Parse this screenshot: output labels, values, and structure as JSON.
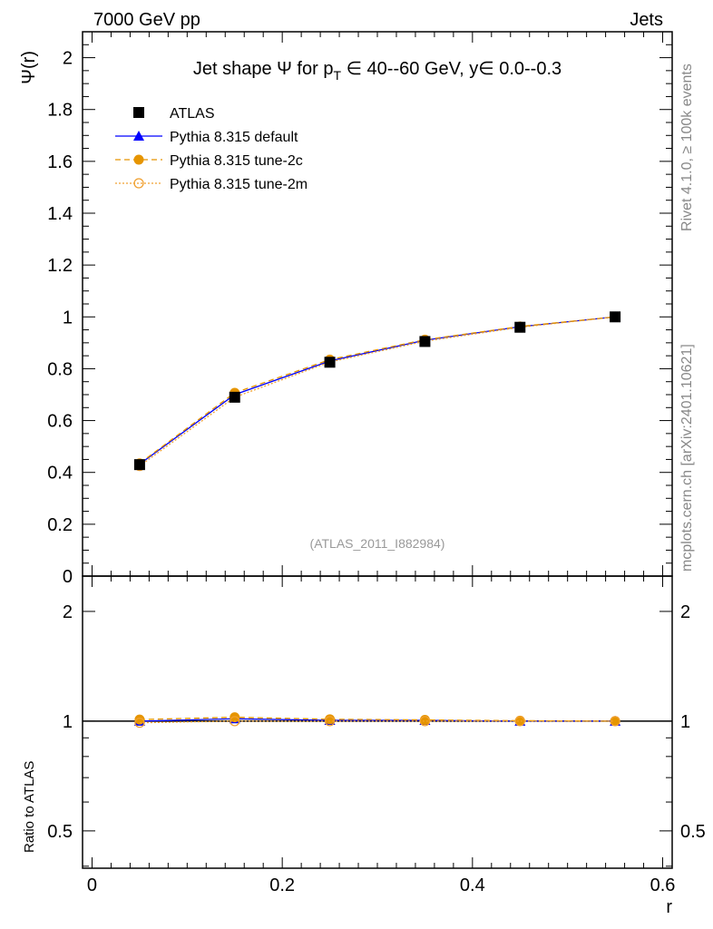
{
  "header": {
    "left": "7000 GeV pp",
    "right": "Jets"
  },
  "side_labels": {
    "rivet": "Rivet 4.1.0, ≥ 100k events",
    "mcplots": "mcplots.cern.ch [arXiv:2401.10621]"
  },
  "watermark": "(ATLAS_2011_I882984)",
  "chart_data": [
    {
      "type": "line",
      "title": "Jet shape Ψ for p_T ∈ 40--60 GeV, y∈ 0.0--0.3",
      "title_parts": {
        "a": "Jet shape Ψ for p",
        "sub": "T",
        "b": " ∈ 40--60 GeV, y∈ 0.0--0.3"
      },
      "xlabel": "r",
      "ylabel": "Ψ(r)",
      "xlim": [
        -0.01,
        0.61
      ],
      "ylim": [
        0,
        2.1
      ],
      "xticks": [
        "0",
        "0.2",
        "0.4",
        "0.6"
      ],
      "xtick_values": [
        0,
        0.2,
        0.4,
        0.6
      ],
      "yticks": [
        "0",
        "0.2",
        "0.4",
        "0.6",
        "0.8",
        "1",
        "1.2",
        "1.4",
        "1.6",
        "1.8",
        "2"
      ],
      "ytick_values": [
        0,
        0.2,
        0.4,
        0.6,
        0.8,
        1.0,
        1.2,
        1.4,
        1.6,
        1.8,
        2.0
      ],
      "legend_position": "top-left",
      "x": [
        0.05,
        0.15,
        0.25,
        0.35,
        0.45,
        0.55
      ],
      "series": [
        {
          "name": "ATLAS",
          "color": "#000000",
          "marker": "square",
          "values": [
            0.43,
            0.69,
            0.825,
            0.905,
            0.96,
            1.0
          ],
          "errors": [
            0.015,
            0.012,
            0.008,
            0.006,
            0.004,
            0.0
          ]
        },
        {
          "name": "Pythia 8.315 default",
          "color": "#0000ff",
          "marker": "triangle",
          "line": "solid",
          "values": [
            0.432,
            0.7,
            0.83,
            0.91,
            0.962,
            1.0
          ]
        },
        {
          "name": "Pythia 8.315 tune-2c",
          "color": "#e69500",
          "marker": "circle",
          "line": "dashed",
          "values": [
            0.435,
            0.707,
            0.835,
            0.912,
            0.963,
            1.0
          ]
        },
        {
          "name": "Pythia 8.315 tune-2m",
          "color": "#f0a030",
          "marker": "open-circle",
          "line": "dotted",
          "values": [
            0.425,
            0.69,
            0.826,
            0.906,
            0.96,
            1.0
          ]
        }
      ]
    },
    {
      "type": "line",
      "title": "",
      "xlabel": "r",
      "ylabel": "Ratio to ATLAS",
      "yscale": "log",
      "ylim": [
        0.395,
        2.5
      ],
      "yticks": [
        "0.5",
        "1",
        "2"
      ],
      "ytick_values": [
        0.5,
        1,
        2
      ],
      "x": [
        0.05,
        0.15,
        0.25,
        0.35,
        0.45,
        0.55
      ],
      "series": [
        {
          "name": "Pythia 8.315 default",
          "values": [
            1.0,
            1.015,
            1.005,
            1.005,
            1.0,
            1.0
          ]
        },
        {
          "name": "Pythia 8.315 tune-2c",
          "values": [
            1.01,
            1.025,
            1.012,
            1.008,
            1.003,
            1.0
          ]
        },
        {
          "name": "Pythia 8.315 tune-2m",
          "values": [
            0.99,
            1.0,
            1.0,
            1.0,
            1.0,
            1.0
          ]
        }
      ]
    }
  ]
}
